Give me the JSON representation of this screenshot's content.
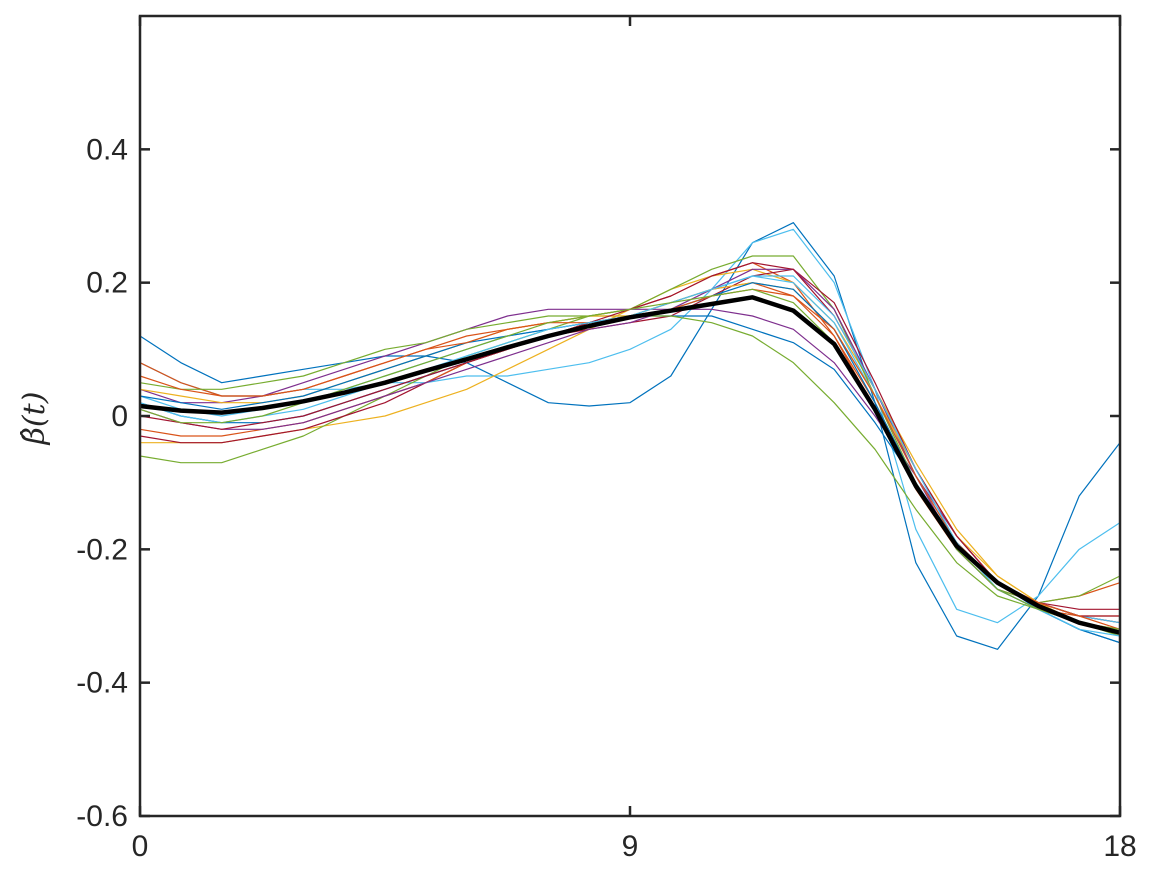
{
  "chart_data": {
    "type": "line",
    "title": "",
    "xlabel": "",
    "ylabel": "β̂(t)",
    "xlim": [
      0,
      18
    ],
    "ylim": [
      -0.6,
      0.6
    ],
    "xticks": [
      0,
      9,
      18
    ],
    "xtick_labels": [
      "0",
      "9",
      "18"
    ],
    "yticks": [
      -0.6,
      -0.4,
      -0.2,
      0,
      0.2,
      0.4
    ],
    "ytick_labels": [
      "-0.6",
      "-0.4",
      "-0.2",
      "0",
      "0.2",
      "0.4"
    ],
    "grid": false,
    "box": true,
    "x": [
      0,
      0.75,
      1.5,
      2.25,
      3,
      3.75,
      4.5,
      5.25,
      6,
      6.75,
      7.5,
      8.25,
      9,
      9.75,
      10.5,
      11.25,
      12,
      12.75,
      13.5,
      14.25,
      15,
      15.75,
      16.5,
      17.25,
      18
    ],
    "series": [
      {
        "color": "#0072BD",
        "width": 1.2,
        "values": [
          0.12,
          0.08,
          0.05,
          0.06,
          0.07,
          0.08,
          0.09,
          0.09,
          0.08,
          0.05,
          0.02,
          0.015,
          0.02,
          0.06,
          0.16,
          0.26,
          0.29,
          0.21,
          0.02,
          -0.22,
          -0.33,
          -0.35,
          -0.27,
          -0.12,
          -0.04
        ]
      },
      {
        "color": "#4DBEEE",
        "width": 1.2,
        "values": [
          0.08,
          0.05,
          0.03,
          0.03,
          0.04,
          0.04,
          0.05,
          0.05,
          0.06,
          0.06,
          0.07,
          0.08,
          0.1,
          0.13,
          0.19,
          0.26,
          0.28,
          0.2,
          0.04,
          -0.17,
          -0.29,
          -0.31,
          -0.27,
          -0.2,
          -0.16
        ]
      },
      {
        "color": "#D95319",
        "width": 1.2,
        "values": [
          0.08,
          0.05,
          0.03,
          0.03,
          0.04,
          0.06,
          0.08,
          0.1,
          0.12,
          0.13,
          0.14,
          0.15,
          0.16,
          0.18,
          0.21,
          0.23,
          0.2,
          0.12,
          0.01,
          -0.11,
          -0.2,
          -0.26,
          -0.28,
          -0.27,
          -0.25
        ]
      },
      {
        "color": "#EDB120",
        "width": 1.2,
        "values": [
          -0.04,
          -0.04,
          -0.04,
          -0.03,
          -0.02,
          -0.01,
          0.0,
          0.02,
          0.04,
          0.07,
          0.1,
          0.13,
          0.16,
          0.19,
          0.21,
          0.22,
          0.2,
          0.14,
          0.04,
          -0.07,
          -0.17,
          -0.24,
          -0.28,
          -0.3,
          -0.3
        ]
      },
      {
        "color": "#7E2F8E",
        "width": 1.2,
        "values": [
          0.04,
          0.02,
          0.02,
          0.03,
          0.05,
          0.07,
          0.09,
          0.11,
          0.13,
          0.15,
          0.16,
          0.16,
          0.16,
          0.16,
          0.16,
          0.15,
          0.13,
          0.08,
          0.0,
          -0.09,
          -0.18,
          -0.25,
          -0.28,
          -0.3,
          -0.31
        ]
      },
      {
        "color": "#77AC30",
        "width": 1.2,
        "values": [
          -0.06,
          -0.07,
          -0.07,
          -0.05,
          -0.03,
          0.0,
          0.03,
          0.06,
          0.09,
          0.11,
          0.13,
          0.15,
          0.16,
          0.19,
          0.22,
          0.24,
          0.24,
          0.16,
          0.03,
          -0.1,
          -0.2,
          -0.26,
          -0.28,
          -0.27,
          -0.24
        ]
      },
      {
        "color": "#A2142F",
        "width": 1.2,
        "values": [
          -0.03,
          -0.04,
          -0.04,
          -0.03,
          -0.02,
          0.0,
          0.02,
          0.05,
          0.08,
          0.1,
          0.12,
          0.13,
          0.14,
          0.15,
          0.18,
          0.21,
          0.22,
          0.17,
          0.05,
          -0.08,
          -0.18,
          -0.25,
          -0.28,
          -0.29,
          -0.29
        ]
      },
      {
        "color": "#0072BD",
        "width": 1.2,
        "values": [
          0.02,
          0.0,
          -0.01,
          -0.01,
          0.0,
          0.02,
          0.04,
          0.06,
          0.08,
          0.1,
          0.12,
          0.14,
          0.15,
          0.15,
          0.15,
          0.13,
          0.11,
          0.07,
          -0.01,
          -0.1,
          -0.19,
          -0.25,
          -0.29,
          -0.32,
          -0.34
        ]
      },
      {
        "color": "#D95319",
        "width": 1.2,
        "values": [
          -0.02,
          -0.03,
          -0.03,
          -0.02,
          -0.01,
          0.01,
          0.03,
          0.05,
          0.08,
          0.1,
          0.12,
          0.14,
          0.15,
          0.17,
          0.19,
          0.2,
          0.18,
          0.12,
          0.02,
          -0.1,
          -0.2,
          -0.26,
          -0.29,
          -0.3,
          -0.31
        ]
      },
      {
        "color": "#77AC30",
        "width": 1.2,
        "values": [
          0.05,
          0.04,
          0.04,
          0.05,
          0.06,
          0.08,
          0.1,
          0.11,
          0.13,
          0.14,
          0.15,
          0.15,
          0.15,
          0.15,
          0.14,
          0.12,
          0.08,
          0.02,
          -0.05,
          -0.14,
          -0.22,
          -0.27,
          -0.29,
          -0.31,
          -0.33
        ]
      },
      {
        "color": "#4DBEEE",
        "width": 1.2,
        "values": [
          0.03,
          0.01,
          0.0,
          0.01,
          0.02,
          0.04,
          0.06,
          0.08,
          0.1,
          0.12,
          0.13,
          0.14,
          0.15,
          0.17,
          0.19,
          0.21,
          0.2,
          0.14,
          0.03,
          -0.09,
          -0.19,
          -0.25,
          -0.28,
          -0.3,
          -0.31
        ]
      },
      {
        "color": "#7E2F8E",
        "width": 1.2,
        "values": [
          0.01,
          -0.01,
          -0.02,
          -0.02,
          -0.01,
          0.01,
          0.03,
          0.05,
          0.07,
          0.09,
          0.11,
          0.13,
          0.14,
          0.16,
          0.19,
          0.22,
          0.22,
          0.16,
          0.04,
          -0.09,
          -0.2,
          -0.26,
          -0.29,
          -0.31,
          -0.32
        ]
      },
      {
        "color": "#EDB120",
        "width": 1.2,
        "values": [
          0.04,
          0.03,
          0.02,
          0.02,
          0.03,
          0.05,
          0.07,
          0.09,
          0.11,
          0.13,
          0.14,
          0.15,
          0.15,
          0.17,
          0.19,
          0.2,
          0.19,
          0.13,
          0.03,
          -0.08,
          -0.18,
          -0.24,
          -0.28,
          -0.31,
          -0.32
        ]
      },
      {
        "color": "#A2142F",
        "width": 1.2,
        "values": [
          0.0,
          -0.01,
          -0.02,
          -0.01,
          0.0,
          0.02,
          0.04,
          0.06,
          0.08,
          0.1,
          0.12,
          0.14,
          0.16,
          0.18,
          0.21,
          0.23,
          0.22,
          0.15,
          0.04,
          -0.08,
          -0.18,
          -0.25,
          -0.28,
          -0.3,
          -0.3
        ]
      },
      {
        "color": "#0072BD",
        "width": 1.2,
        "values": [
          0.03,
          0.02,
          0.01,
          0.02,
          0.03,
          0.05,
          0.07,
          0.09,
          0.11,
          0.12,
          0.13,
          0.14,
          0.15,
          0.16,
          0.18,
          0.2,
          0.19,
          0.13,
          0.02,
          -0.1,
          -0.2,
          -0.26,
          -0.29,
          -0.32,
          -0.34
        ]
      },
      {
        "color": "#D95319",
        "width": 1.2,
        "values": [
          0.06,
          0.04,
          0.03,
          0.03,
          0.04,
          0.06,
          0.08,
          0.1,
          0.11,
          0.13,
          0.14,
          0.14,
          0.15,
          0.16,
          0.18,
          0.19,
          0.18,
          0.13,
          0.03,
          -0.09,
          -0.19,
          -0.25,
          -0.28,
          -0.3,
          -0.32
        ]
      },
      {
        "color": "#4DBEEE",
        "width": 1.2,
        "values": [
          0.02,
          0.0,
          -0.01,
          0.0,
          0.01,
          0.03,
          0.05,
          0.07,
          0.09,
          0.11,
          0.13,
          0.14,
          0.15,
          0.17,
          0.19,
          0.21,
          0.21,
          0.15,
          0.04,
          -0.08,
          -0.19,
          -0.26,
          -0.29,
          -0.32,
          -0.33
        ]
      },
      {
        "color": "#77AC30",
        "width": 1.2,
        "values": [
          0.01,
          -0.01,
          -0.01,
          0.0,
          0.02,
          0.04,
          0.06,
          0.08,
          0.1,
          0.12,
          0.14,
          0.15,
          0.16,
          0.17,
          0.18,
          0.19,
          0.17,
          0.11,
          0.01,
          -0.1,
          -0.2,
          -0.26,
          -0.29,
          -0.31,
          -0.32
        ]
      },
      {
        "color": "#000000",
        "width": 4.5,
        "values": [
          0.015,
          0.008,
          0.005,
          0.012,
          0.022,
          0.035,
          0.05,
          0.068,
          0.085,
          0.103,
          0.12,
          0.135,
          0.148,
          0.158,
          0.168,
          0.178,
          0.158,
          0.108,
          0.01,
          -0.105,
          -0.195,
          -0.25,
          -0.285,
          -0.31,
          -0.325
        ]
      }
    ]
  }
}
